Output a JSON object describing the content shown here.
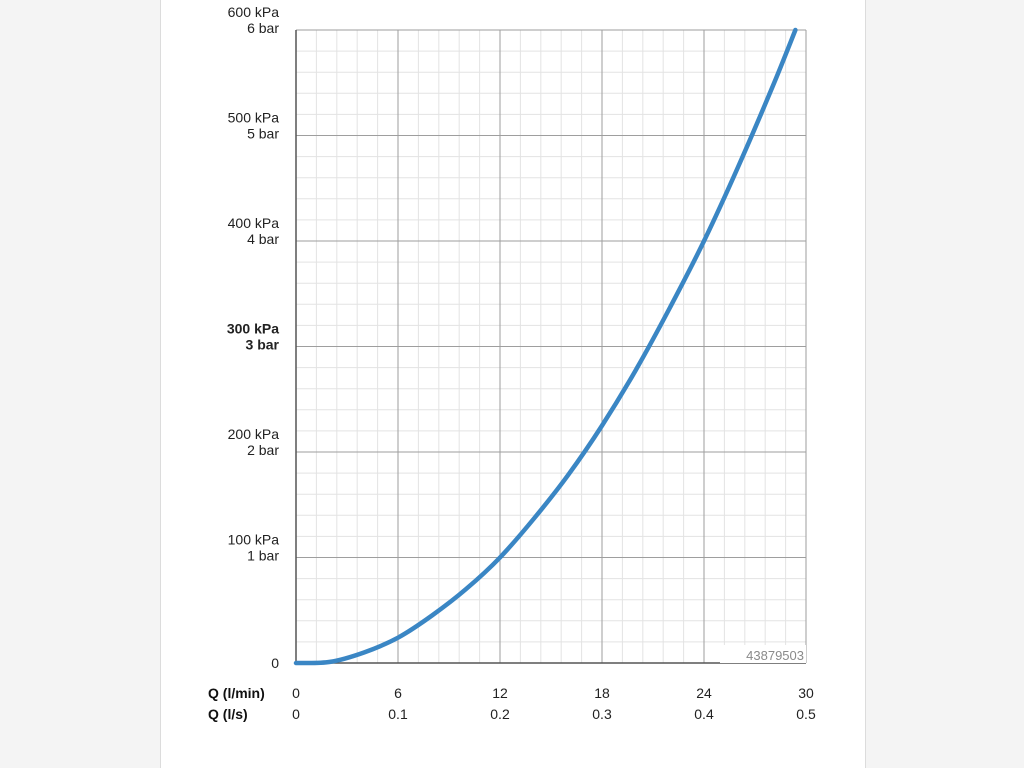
{
  "chart_data": {
    "type": "line",
    "x_axis": {
      "primary_label": "Q (l/min)",
      "secondary_label": "Q (l/s)",
      "ticks": [
        {
          "lmin": "0",
          "ls": "0",
          "value": 0
        },
        {
          "lmin": "6",
          "ls": "0.1",
          "value": 6
        },
        {
          "lmin": "12",
          "ls": "0.2",
          "value": 12
        },
        {
          "lmin": "18",
          "ls": "0.3",
          "value": 18
        },
        {
          "lmin": "24",
          "ls": "0.4",
          "value": 24
        },
        {
          "lmin": "30",
          "ls": "0.5",
          "value": 30
        }
      ],
      "range": [
        0,
        30
      ]
    },
    "y_axis": {
      "ticks": [
        {
          "kpa": "0",
          "bar": "",
          "value": 0,
          "bold": false
        },
        {
          "kpa": "100 kPa",
          "bar": "1 bar",
          "value": 100,
          "bold": false
        },
        {
          "kpa": "200 kPa",
          "bar": "2 bar",
          "value": 200,
          "bold": false
        },
        {
          "kpa": "300 kPa",
          "bar": "3 bar",
          "value": 300,
          "bold": true
        },
        {
          "kpa": "400 kPa",
          "bar": "4 bar",
          "value": 400,
          "bold": false
        },
        {
          "kpa": "500 kPa",
          "bar": "5 bar",
          "value": 500,
          "bold": false
        },
        {
          "kpa": "600 kPa",
          "bar": "6 bar",
          "value": 600,
          "bold": false
        }
      ],
      "range": [
        0,
        600
      ]
    },
    "series": [
      {
        "x": [
          0,
          2,
          4,
          6,
          8,
          10,
          12,
          14,
          16,
          18,
          20,
          22,
          24,
          26,
          28,
          30
        ],
        "y": [
          0,
          1,
          10,
          24,
          45,
          70,
          100,
          137,
          178,
          225,
          278,
          337,
          400,
          470,
          545,
          625
        ],
        "color": "#3a86c4"
      }
    ],
    "grid": true,
    "annotation": "43879503"
  }
}
